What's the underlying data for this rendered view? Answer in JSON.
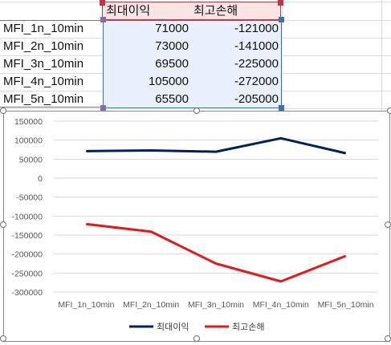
{
  "sheet": {
    "header": {
      "col1": "최대이익",
      "col2": "최고손해"
    },
    "rows": [
      {
        "name": "MFI_1n_10min",
        "profit": "71000",
        "loss": "-121000"
      },
      {
        "name": "MFI_2n_10min",
        "profit": "73000",
        "loss": "-141000"
      },
      {
        "name": "MFI_3n_10min",
        "profit": "69500",
        "loss": "-225000"
      },
      {
        "name": "MFI_4n_10min",
        "profit": "105000",
        "loss": "-272000"
      },
      {
        "name": "MFI_5n_10min",
        "profit": "65500",
        "loss": "-205000"
      }
    ]
  },
  "colors": {
    "profit_line": "#002060",
    "loss_line": "#e41a1a"
  },
  "chart_data": {
    "type": "line",
    "categories": [
      "MFI_1n_10min",
      "MFI_2n_10min",
      "MFI_3n_10min",
      "MFI_4n_10min",
      "MFI_5n_10min"
    ],
    "series": [
      {
        "name": "최대이익",
        "values": [
          71000,
          73000,
          69500,
          105000,
          65500
        ],
        "color": "#002060"
      },
      {
        "name": "최고손해",
        "values": [
          -121000,
          -141000,
          -225000,
          -272000,
          -205000
        ],
        "color": "#e41a1a"
      }
    ],
    "yticks": [
      150000,
      100000,
      50000,
      0,
      -50000,
      -100000,
      -150000,
      -200000,
      -250000,
      -300000
    ],
    "ylim": [
      -300000,
      150000
    ],
    "grid": true,
    "legend": "bottom"
  }
}
